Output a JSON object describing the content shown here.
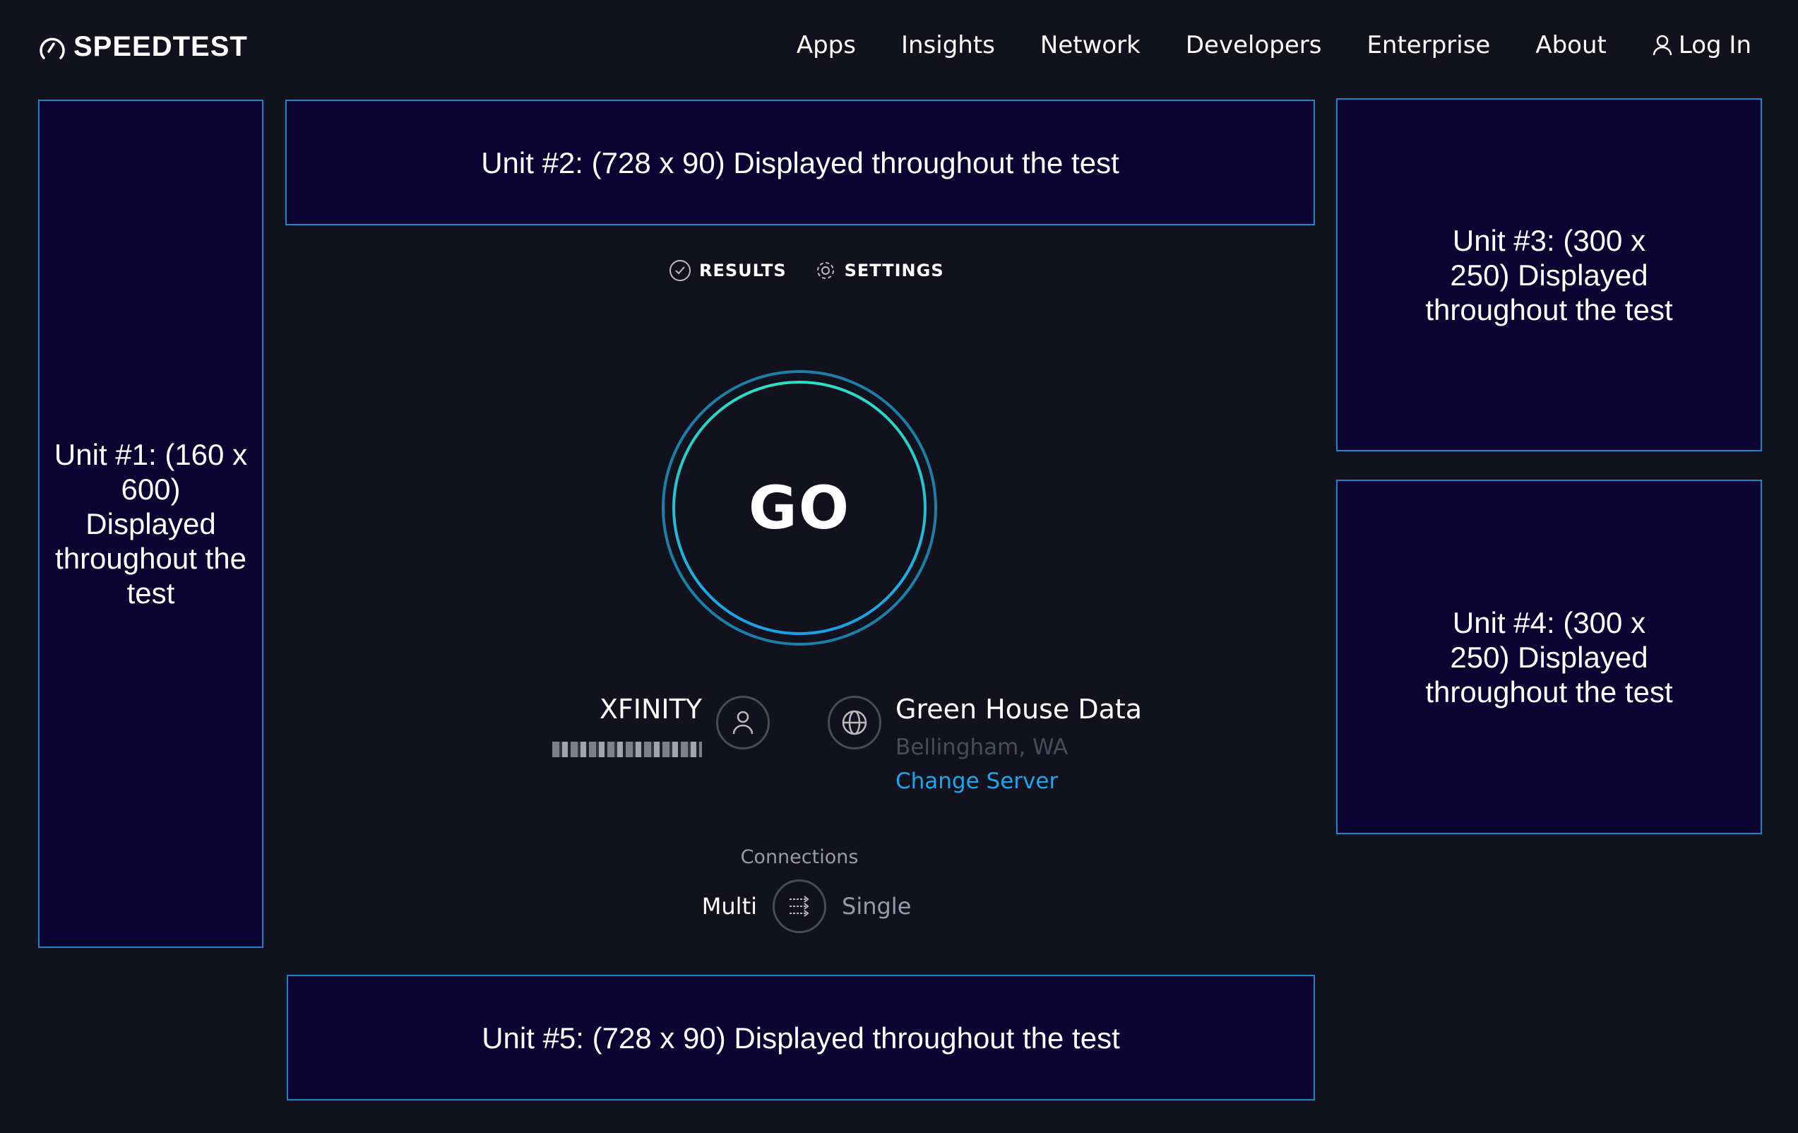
{
  "header": {
    "logo_text": "SPEEDTEST",
    "nav": [
      "Apps",
      "Insights",
      "Network",
      "Developers",
      "Enterprise",
      "About"
    ],
    "login_label": "Log In"
  },
  "ads": {
    "unit1": "Unit #1: (160 x 600) Displayed throughout the test",
    "unit2": "Unit #2: (728 x 90) Displayed throughout the test",
    "unit3": "Unit #3: (300 x 250) Displayed throughout the test",
    "unit4": "Unit #4: (300 x 250) Displayed throughout the test",
    "unit5": "Unit #5: (728 x 90) Displayed throughout the test"
  },
  "tabs": {
    "results": "RESULTS",
    "settings": "SETTINGS"
  },
  "go_label": "GO",
  "provider": {
    "name": "XFINITY"
  },
  "server": {
    "name": "Green House Data",
    "location": "Bellingham, WA",
    "change_label": "Change Server"
  },
  "connections": {
    "label": "Connections",
    "multi": "Multi",
    "single": "Single",
    "selected": "Multi"
  },
  "colors": {
    "background": "#11121d",
    "ad_fill": "#0a0230",
    "ad_border": "#1b84c4",
    "accent": "#1ca7ec",
    "go_ring_outer": "#1c7fa8",
    "go_ring_inner": "#2bd4c8"
  }
}
